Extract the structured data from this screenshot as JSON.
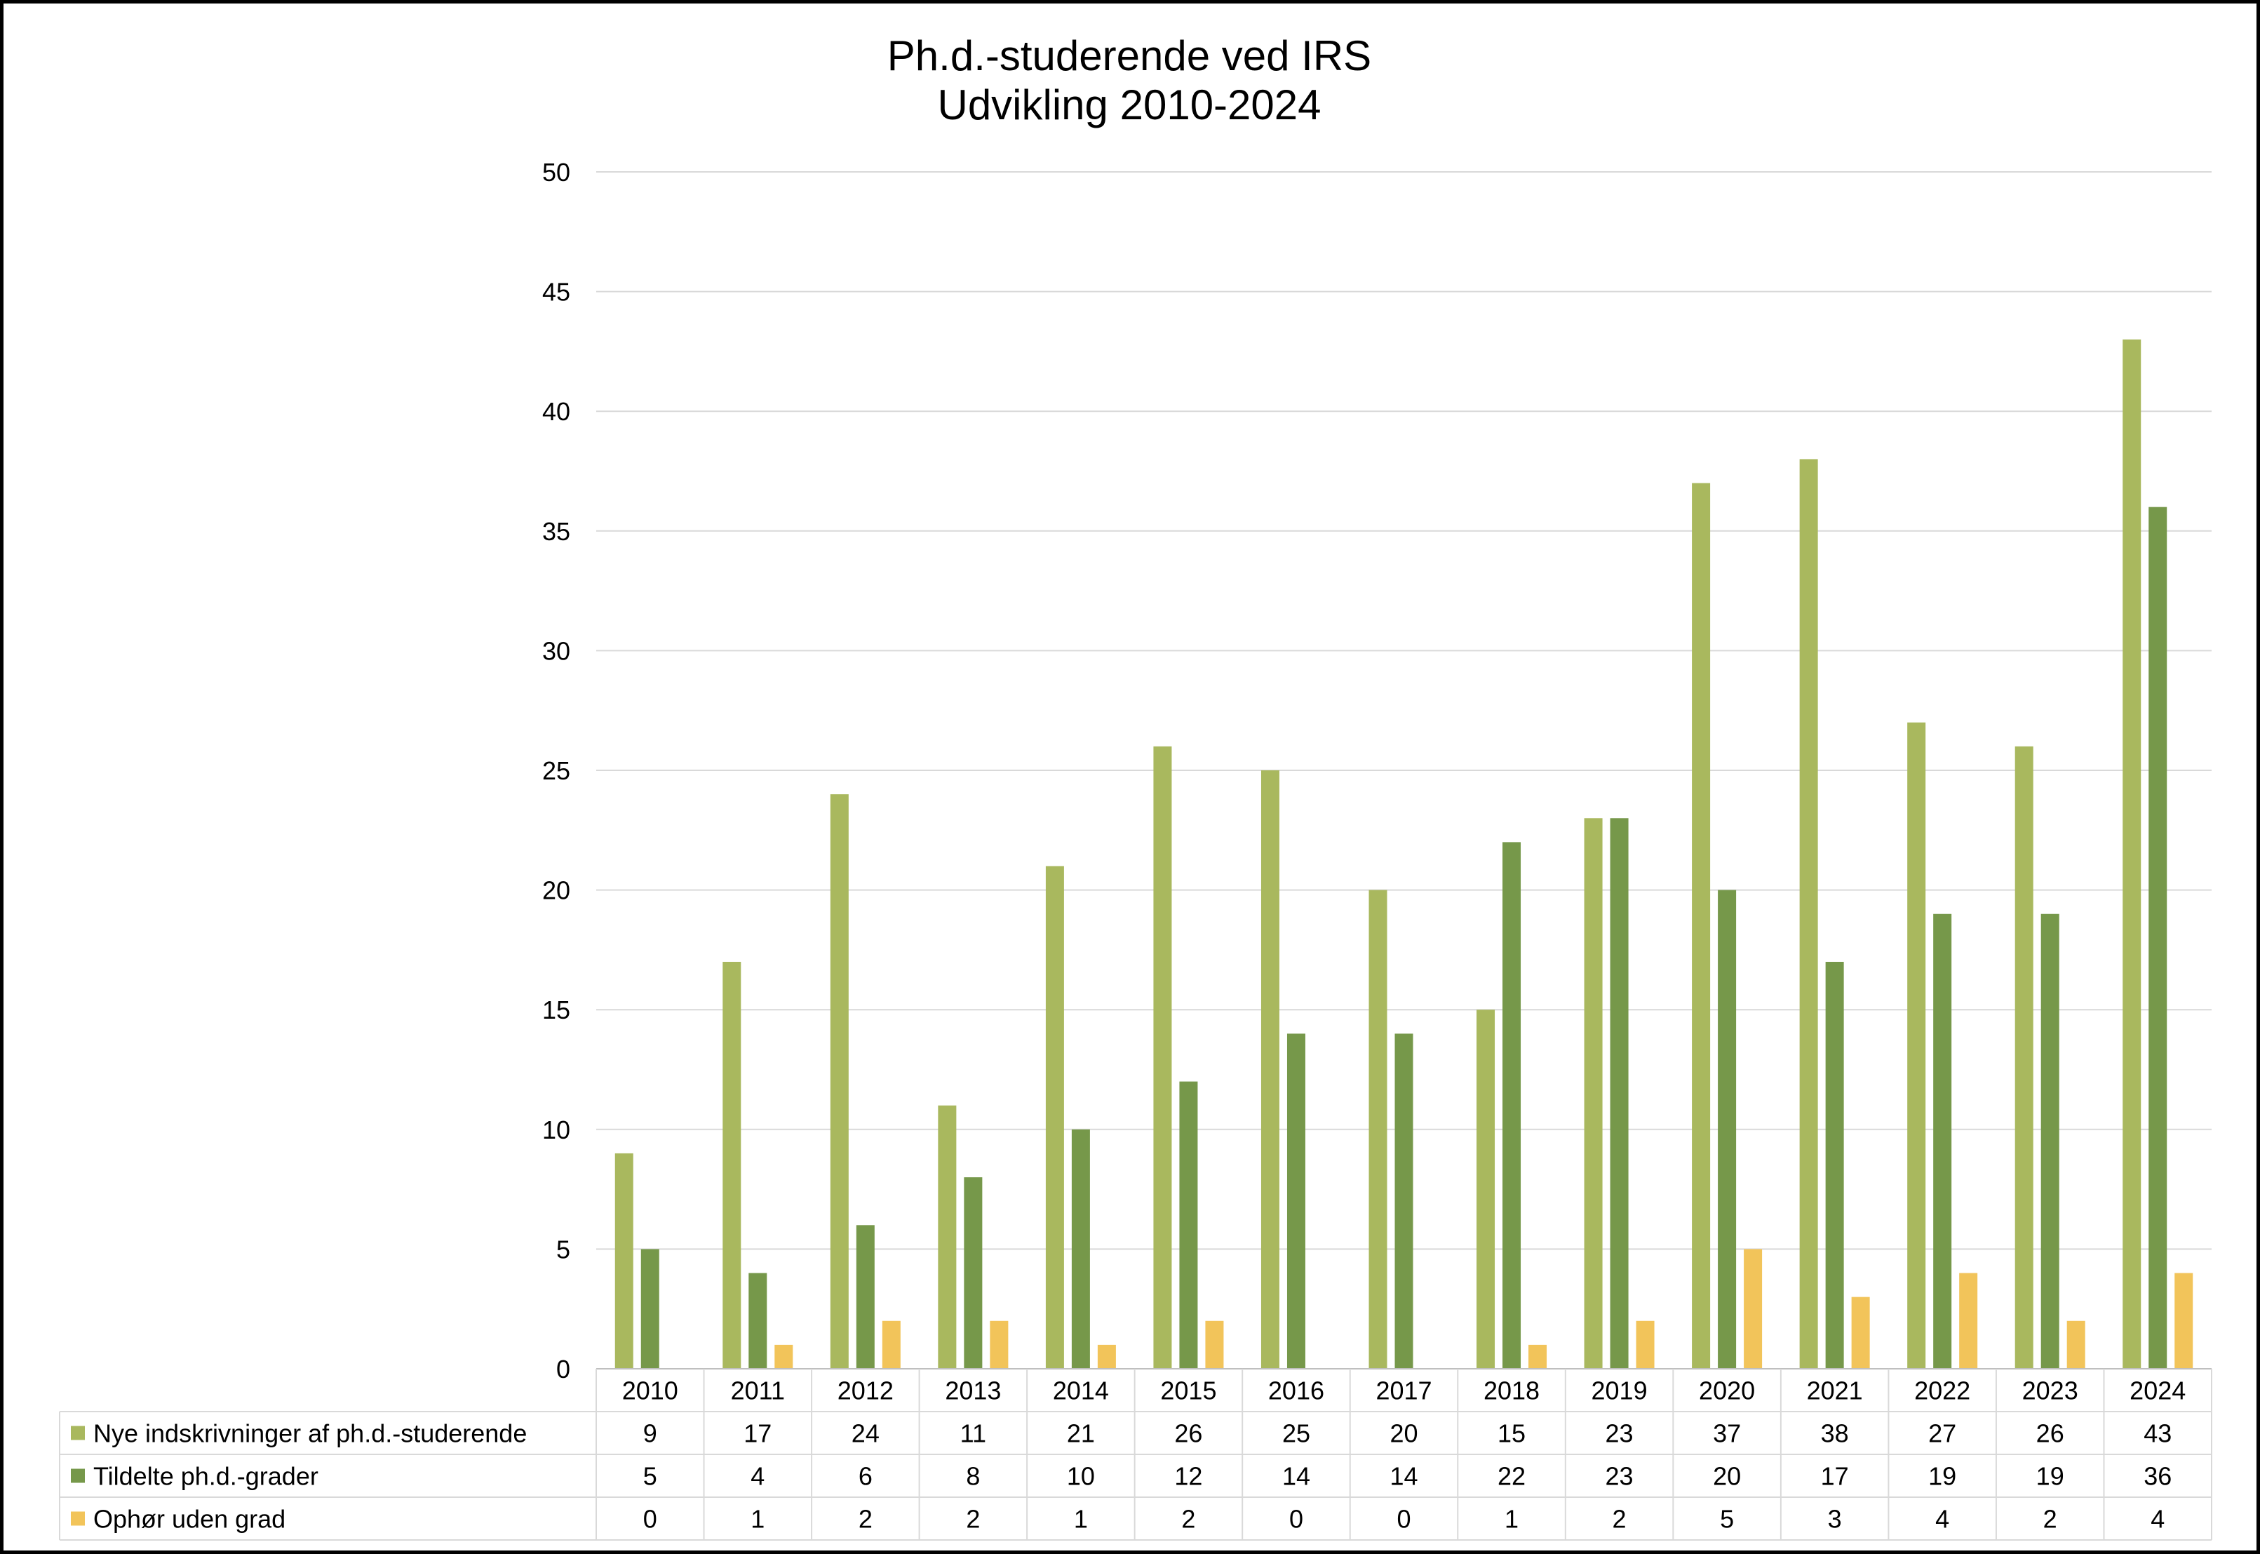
{
  "chart_data": {
    "type": "bar",
    "title": [
      "Ph.d.-studerende ved IRS",
      "Udvikling 2010-2024"
    ],
    "categories": [
      "2010",
      "2011",
      "2012",
      "2013",
      "2014",
      "2015",
      "2016",
      "2017",
      "2018",
      "2019",
      "2020",
      "2021",
      "2022",
      "2023",
      "2024"
    ],
    "series": [
      {
        "name": "Nye indskrivninger af ph.d.-studerende",
        "color": "#a9b85e",
        "values": [
          9,
          17,
          24,
          11,
          21,
          26,
          25,
          20,
          15,
          23,
          37,
          38,
          27,
          26,
          43
        ]
      },
      {
        "name": "Tildelte ph.d.-grader",
        "color": "#76984a",
        "values": [
          5,
          4,
          6,
          8,
          10,
          12,
          14,
          14,
          22,
          23,
          20,
          17,
          19,
          19,
          36
        ]
      },
      {
        "name": "Ophør uden grad",
        "color": "#f2c45a",
        "values": [
          0,
          1,
          2,
          2,
          1,
          2,
          0,
          0,
          1,
          2,
          5,
          3,
          4,
          2,
          4
        ]
      }
    ],
    "ylim": [
      0,
      50
    ],
    "yticks": [
      0,
      5,
      10,
      15,
      20,
      25,
      30,
      35,
      40,
      45,
      50
    ],
    "grid": true,
    "legend": "data-table-left",
    "data_table": true
  }
}
